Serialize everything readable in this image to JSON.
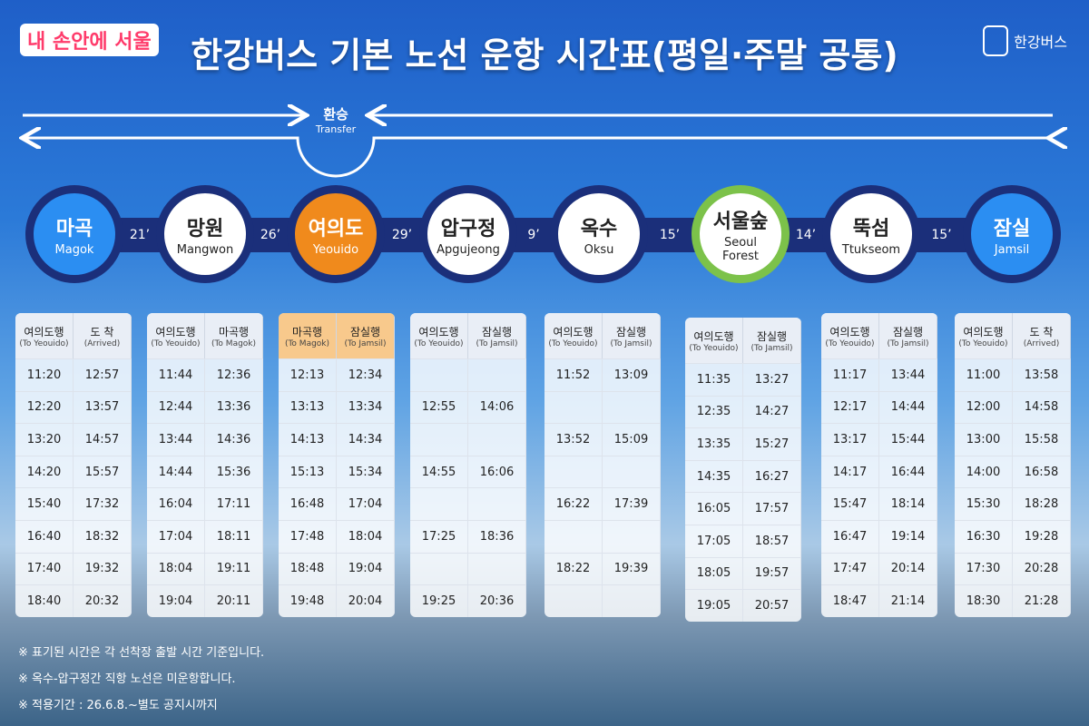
{
  "brand": "내 손안에 서울",
  "title": "한강버스 기본 노선 운항 시간표(평일·주말 공통)",
  "logo": "한강버스",
  "transfer": {
    "ko": "환승",
    "en": "Transfer"
  },
  "stations": [
    {
      "ko": "마곡",
      "en": "Magok"
    },
    {
      "ko": "망원",
      "en": "Mangwon"
    },
    {
      "ko": "여의도",
      "en": "Yeouido"
    },
    {
      "ko": "압구정",
      "en": "Apgujeong"
    },
    {
      "ko": "옥수",
      "en": "Oksu"
    },
    {
      "ko": "서울숲",
      "en": "Seoul Forest"
    },
    {
      "ko": "뚝섬",
      "en": "Ttukseom"
    },
    {
      "ko": "잠실",
      "en": "Jamsil"
    }
  ],
  "intervals": [
    "21’",
    "26’",
    "29’",
    "9’",
    "15’",
    "14’",
    "15’"
  ],
  "timetables": [
    {
      "headers": [
        [
          "여의도행",
          "(To Yeouido)"
        ],
        [
          "도 착",
          "(Arrived)"
        ]
      ],
      "rows": [
        [
          "11:20",
          "12:57"
        ],
        [
          "12:20",
          "13:57"
        ],
        [
          "13:20",
          "14:57"
        ],
        [
          "14:20",
          "15:57"
        ],
        [
          "15:40",
          "17:32"
        ],
        [
          "16:40",
          "18:32"
        ],
        [
          "17:40",
          "19:32"
        ],
        [
          "18:40",
          "20:32"
        ]
      ]
    },
    {
      "headers": [
        [
          "여의도행",
          "(To Yeouido)"
        ],
        [
          "마곡행",
          "(To Magok)"
        ]
      ],
      "rows": [
        [
          "11:44",
          "12:36"
        ],
        [
          "12:44",
          "13:36"
        ],
        [
          "13:44",
          "14:36"
        ],
        [
          "14:44",
          "15:36"
        ],
        [
          "16:04",
          "17:11"
        ],
        [
          "17:04",
          "18:11"
        ],
        [
          "18:04",
          "19:11"
        ],
        [
          "19:04",
          "20:11"
        ]
      ]
    },
    {
      "headers": [
        [
          "마곡행",
          "(To Magok)"
        ],
        [
          "잠실행",
          "(To Jamsil)"
        ]
      ],
      "rows": [
        [
          "12:13",
          "12:34"
        ],
        [
          "13:13",
          "13:34"
        ],
        [
          "14:13",
          "14:34"
        ],
        [
          "15:13",
          "15:34"
        ],
        [
          "16:48",
          "17:04"
        ],
        [
          "17:48",
          "18:04"
        ],
        [
          "18:48",
          "19:04"
        ],
        [
          "19:48",
          "20:04"
        ]
      ]
    },
    {
      "headers": [
        [
          "여의도행",
          "(To Yeouido)"
        ],
        [
          "잠실행",
          "(To Jamsil)"
        ]
      ],
      "rows": [
        null,
        [
          "12:55",
          "14:06"
        ],
        null,
        [
          "14:55",
          "16:06"
        ],
        null,
        [
          "17:25",
          "18:36"
        ],
        null,
        [
          "19:25",
          "20:36"
        ]
      ]
    },
    {
      "headers": [
        [
          "여의도행",
          "(To Yeouido)"
        ],
        [
          "잠실행",
          "(To Jamsil)"
        ]
      ],
      "rows": [
        [
          "11:52",
          "13:09"
        ],
        null,
        [
          "13:52",
          "15:09"
        ],
        null,
        [
          "16:22",
          "17:39"
        ],
        null,
        [
          "18:22",
          "19:39"
        ],
        null
      ]
    },
    {
      "headers": [
        [
          "여의도행",
          "(To Yeouido)"
        ],
        [
          "잠실행",
          "(To Jamsil)"
        ]
      ],
      "rows": [
        [
          "11:35",
          "13:27"
        ],
        [
          "12:35",
          "14:27"
        ],
        [
          "13:35",
          "15:27"
        ],
        [
          "14:35",
          "16:27"
        ],
        [
          "16:05",
          "17:57"
        ],
        [
          "17:05",
          "18:57"
        ],
        [
          "18:05",
          "19:57"
        ],
        [
          "19:05",
          "20:57"
        ]
      ]
    },
    {
      "headers": [
        [
          "여의도행",
          "(To Yeouido)"
        ],
        [
          "잠실행",
          "(To Jamsil)"
        ]
      ],
      "rows": [
        [
          "11:17",
          "13:44"
        ],
        [
          "12:17",
          "14:44"
        ],
        [
          "13:17",
          "15:44"
        ],
        [
          "14:17",
          "16:44"
        ],
        [
          "15:47",
          "18:14"
        ],
        [
          "16:47",
          "19:14"
        ],
        [
          "17:47",
          "20:14"
        ],
        [
          "18:47",
          "21:14"
        ]
      ]
    },
    {
      "headers": [
        [
          "여의도행",
          "(To Yeouido)"
        ],
        [
          "도 착",
          "(Arrived)"
        ]
      ],
      "rows": [
        [
          "11:00",
          "13:58"
        ],
        [
          "12:00",
          "14:58"
        ],
        [
          "13:00",
          "15:58"
        ],
        [
          "14:00",
          "16:58"
        ],
        [
          "15:30",
          "18:28"
        ],
        [
          "16:30",
          "19:28"
        ],
        [
          "17:30",
          "20:28"
        ],
        [
          "18:30",
          "21:28"
        ]
      ]
    }
  ],
  "notes": [
    "※ 표기된 시간은 각 선착장 출발 시간 기준입니다.",
    "※ 옥수-압구정간 직항 노선은 미운항합니다.",
    "※ 적용기간 : 26.6.8.~별도 공지시까지"
  ]
}
